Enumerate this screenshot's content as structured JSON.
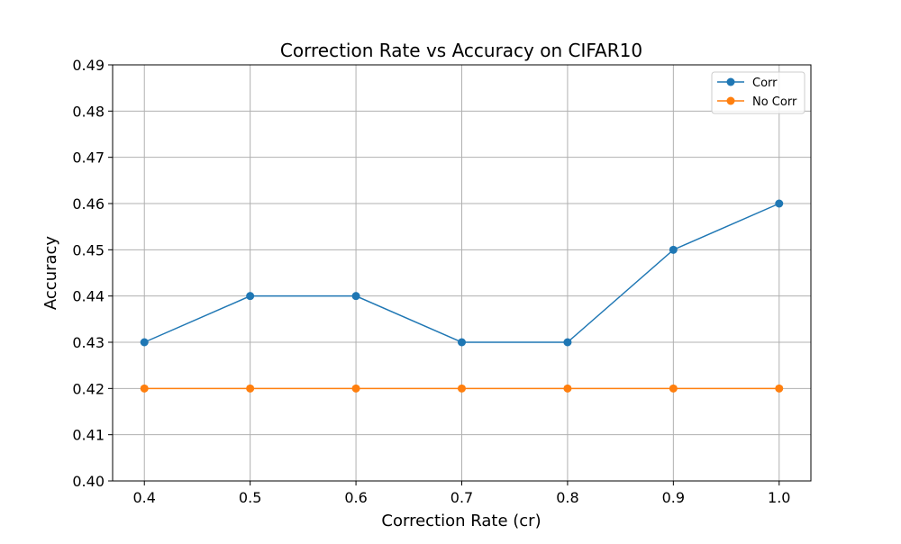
{
  "chart_data": {
    "type": "line",
    "title": "Correction Rate vs Accuracy on CIFAR10",
    "xlabel": "Correction Rate (cr)",
    "ylabel": "Accuracy",
    "x": [
      0.4,
      0.5,
      0.6,
      0.7,
      0.8,
      0.9,
      1.0
    ],
    "x_tick_labels": [
      "0.4",
      "0.5",
      "0.6",
      "0.7",
      "0.8",
      "0.9",
      "1.0"
    ],
    "y_tick_labels": [
      "0.40",
      "0.41",
      "0.42",
      "0.43",
      "0.44",
      "0.45",
      "0.46",
      "0.47",
      "0.48",
      "0.49"
    ],
    "y_ticks": [
      0.4,
      0.41,
      0.42,
      0.43,
      0.44,
      0.45,
      0.46,
      0.47,
      0.48,
      0.49
    ],
    "xlim": [
      0.37,
      1.03
    ],
    "ylim": [
      0.4,
      0.49
    ],
    "grid": true,
    "legend_position": "top-right",
    "series": [
      {
        "name": "Corr",
        "color": "#1f77b4",
        "marker": "circle",
        "values": [
          0.43,
          0.44,
          0.44,
          0.43,
          0.43,
          0.45,
          0.46
        ]
      },
      {
        "name": "No Corr",
        "color": "#ff7f0e",
        "marker": "circle",
        "values": [
          0.42,
          0.42,
          0.42,
          0.42,
          0.42,
          0.42,
          0.42
        ]
      }
    ]
  }
}
